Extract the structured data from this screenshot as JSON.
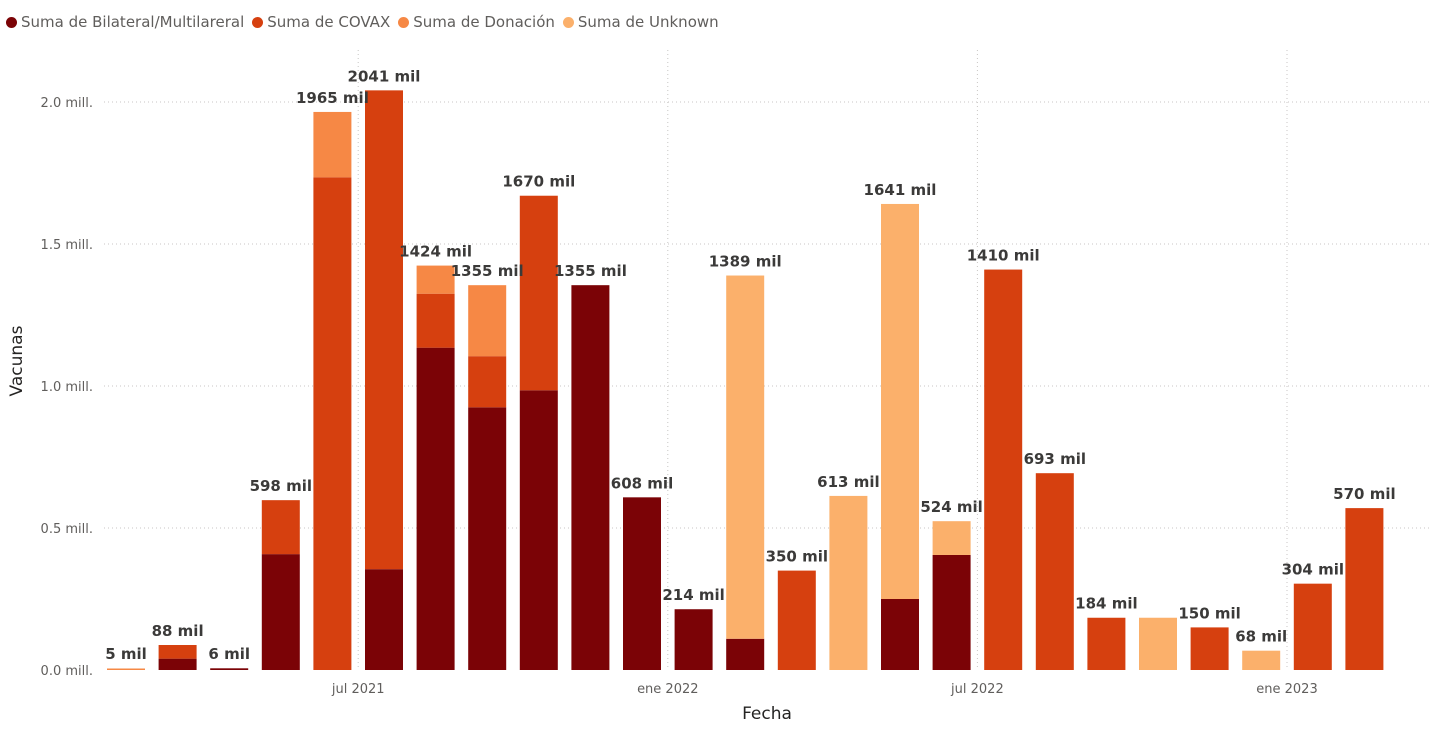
{
  "chart_data": {
    "type": "bar",
    "stacked": true,
    "xlabel": "Fecha",
    "ylabel": "Vacunas",
    "ylim": [
      0,
      2100000
    ],
    "y_ticks": [
      {
        "value": 0,
        "label": "0.0 mill."
      },
      {
        "value": 500000,
        "label": "0.5 mill."
      },
      {
        "value": 1000000,
        "label": "1.0 mill."
      },
      {
        "value": 1500000,
        "label": "1.5 mill."
      },
      {
        "value": 2000000,
        "label": "2.0 mill."
      }
    ],
    "x_ticks": [
      {
        "index": 4.5,
        "label": "jul 2021"
      },
      {
        "index": 10.5,
        "label": "ene 2022"
      },
      {
        "index": 16.5,
        "label": "jul 2022"
      },
      {
        "index": 22.5,
        "label": "ene 2023"
      }
    ],
    "gridlines": true,
    "legend_position": "top-left",
    "slots": 25,
    "series": [
      {
        "name": "Suma de Bilateral/Multilareral",
        "color": "#7b0306",
        "values": [
          0,
          40000,
          6000,
          408000,
          0,
          355000,
          1135000,
          925000,
          985000,
          1355000,
          608000,
          214000,
          110000,
          0,
          0,
          250000,
          405000,
          0,
          0,
          0,
          0,
          0,
          0,
          0,
          0
        ]
      },
      {
        "name": "Suma de COVAX",
        "color": "#d6400f",
        "values": [
          0,
          48000,
          0,
          190000,
          1735000,
          1686000,
          190000,
          180000,
          685000,
          0,
          0,
          0,
          0,
          350000,
          0,
          0,
          0,
          1410000,
          693000,
          184000,
          0,
          150000,
          0,
          304000,
          570000
        ]
      },
      {
        "name": "Suma de Donación",
        "color": "#f68845",
        "values": [
          5000,
          0,
          0,
          0,
          230000,
          0,
          99000,
          250000,
          0,
          0,
          0,
          0,
          0,
          0,
          0,
          0,
          0,
          0,
          0,
          0,
          0,
          0,
          0,
          0,
          0
        ]
      },
      {
        "name": "Suma de Unknown",
        "color": "#fbb06b",
        "values": [
          0,
          0,
          0,
          0,
          0,
          0,
          0,
          0,
          0,
          0,
          0,
          0,
          1279000,
          0,
          613000,
          1391000,
          119000,
          0,
          0,
          0,
          184000,
          0,
          68000,
          0,
          0
        ]
      }
    ],
    "totals": [
      {
        "index": 0,
        "label": "5 mil"
      },
      {
        "index": 1,
        "label": "88 mil"
      },
      {
        "index": 2,
        "label": "6 mil"
      },
      {
        "index": 3,
        "label": "598 mil"
      },
      {
        "index": 4,
        "label": "1965 mil"
      },
      {
        "index": 5,
        "label": "2041 mil"
      },
      {
        "index": 6,
        "label": "1424 mil"
      },
      {
        "index": 7,
        "label": "1355 mil"
      },
      {
        "index": 8,
        "label": "1670 mil"
      },
      {
        "index": 9,
        "label": "1355 mil"
      },
      {
        "index": 10,
        "label": "608 mil"
      },
      {
        "index": 11,
        "label": "214 mil"
      },
      {
        "index": 12,
        "label": "1389 mil"
      },
      {
        "index": 13,
        "label": "350 mil"
      },
      {
        "index": 14,
        "label": "613 mil"
      },
      {
        "index": 15,
        "label": "1641 mil"
      },
      {
        "index": 16,
        "label": "524 mil"
      },
      {
        "index": 17,
        "label": "1410 mil"
      },
      {
        "index": 18,
        "label": "693 mil"
      },
      {
        "index": 19,
        "label": "184 mil"
      },
      {
        "index": 21,
        "label": "150 mil"
      },
      {
        "index": 22,
        "label": "68 mil"
      },
      {
        "index": 23,
        "label": "304 mil"
      },
      {
        "index": 24,
        "label": "570 mil"
      }
    ]
  }
}
